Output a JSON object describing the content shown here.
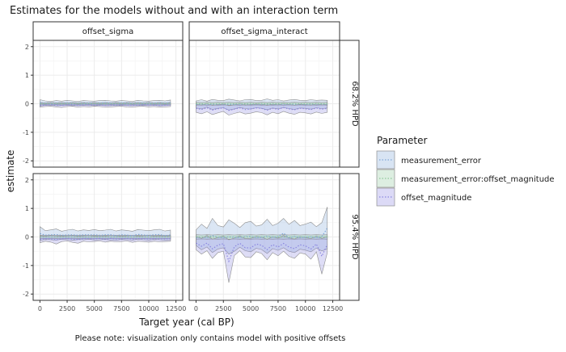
{
  "chart_data": {
    "type": "area",
    "title": "Estimates for the models without and with an interaction term",
    "xlabel": "Target year (cal BP)",
    "ylabel": "estimate",
    "caption": "Please note: visualization only contains model with positive offsets",
    "xlim": [
      0,
      12500
    ],
    "ylim": [
      -2,
      2
    ],
    "x_ticks": [
      0,
      2500,
      5000,
      7500,
      10000,
      12500
    ],
    "y_ticks": [
      -2,
      -1,
      0,
      1,
      2
    ],
    "grid": true,
    "legend": {
      "title": "Parameter",
      "position": "right"
    },
    "facet_columns": [
      "offset_sigma",
      "offset_sigma_interact"
    ],
    "facet_rows": [
      "68.2% HPD",
      "95.4% HPD"
    ],
    "x": [
      0,
      500,
      1000,
      1500,
      2000,
      2500,
      3000,
      3500,
      4000,
      4500,
      5000,
      5500,
      6000,
      6500,
      7000,
      7500,
      8000,
      8500,
      9000,
      9500,
      10000,
      10500,
      11000,
      11500,
      12000
    ],
    "series": [
      {
        "name": "measurement_error",
        "color": "#7ea6d8",
        "panels": {
          "offset_sigma|68.2% HPD": {
            "lower": [
              -0.08,
              -0.06,
              -0.05,
              -0.07,
              -0.06,
              -0.05,
              -0.07,
              -0.06,
              -0.06,
              -0.05,
              -0.07,
              -0.06,
              -0.05,
              -0.06,
              -0.07,
              -0.06,
              -0.05,
              -0.06,
              -0.07,
              -0.06,
              -0.05,
              -0.06,
              -0.07,
              -0.06,
              -0.05
            ],
            "upper": [
              0.14,
              0.1,
              0.08,
              0.11,
              0.09,
              0.12,
              0.1,
              0.08,
              0.11,
              0.1,
              0.09,
              0.11,
              0.12,
              0.1,
              0.09,
              0.11,
              0.1,
              0.08,
              0.12,
              0.1,
              0.09,
              0.11,
              0.12,
              0.1,
              0.13
            ]
          },
          "offset_sigma_interact|68.2% HPD": {
            "lower": [
              -0.15,
              -0.18,
              -0.12,
              -0.2,
              -0.16,
              -0.14,
              -0.22,
              -0.18,
              -0.13,
              -0.17,
              -0.19,
              -0.14,
              -0.16,
              -0.21,
              -0.15,
              -0.18,
              -0.13,
              -0.17,
              -0.2,
              -0.15,
              -0.16,
              -0.19,
              -0.14,
              -0.17,
              -0.15
            ],
            "upper": [
              0.1,
              0.14,
              0.09,
              0.15,
              0.12,
              0.11,
              0.16,
              0.13,
              0.1,
              0.14,
              0.15,
              0.11,
              0.12,
              0.17,
              0.12,
              0.14,
              0.1,
              0.13,
              0.15,
              0.12,
              0.11,
              0.14,
              0.12,
              0.13,
              0.12
            ]
          },
          "offset_sigma|95.4% HPD": {
            "lower": [
              -0.12,
              -0.09,
              -0.1,
              -0.11,
              -0.08,
              -0.1,
              -0.12,
              -0.09,
              -0.1,
              -0.08,
              -0.11,
              -0.1,
              -0.09,
              -0.11,
              -0.12,
              -0.09,
              -0.1,
              -0.11,
              -0.08,
              -0.1,
              -0.11,
              -0.09,
              -0.1,
              -0.12,
              -0.1
            ],
            "upper": [
              0.36,
              0.22,
              0.25,
              0.28,
              0.2,
              0.24,
              0.27,
              0.21,
              0.25,
              0.23,
              0.26,
              0.22,
              0.24,
              0.27,
              0.21,
              0.25,
              0.23,
              0.2,
              0.26,
              0.24,
              0.22,
              0.25,
              0.27,
              0.21,
              0.24
            ]
          },
          "offset_sigma_interact|95.4% HPD": {
            "lower": [
              -0.3,
              -0.45,
              -0.35,
              -0.55,
              -0.42,
              -0.38,
              -0.6,
              -0.5,
              -0.36,
              -0.48,
              -0.52,
              -0.4,
              -0.44,
              -0.58,
              -0.41,
              -0.47,
              -0.38,
              -0.5,
              -0.55,
              -0.43,
              -0.46,
              -0.52,
              -0.39,
              -0.49,
              -0.42
            ],
            "upper": [
              0.25,
              0.45,
              0.3,
              0.65,
              0.4,
              0.35,
              0.6,
              0.48,
              0.33,
              0.5,
              0.55,
              0.38,
              0.42,
              0.62,
              0.4,
              0.48,
              0.65,
              0.44,
              0.58,
              0.4,
              0.45,
              0.52,
              0.36,
              0.5,
              1.05
            ]
          }
        }
      },
      {
        "name": "measurement_error:offset_magnitude",
        "color": "#8fc79a",
        "panels": {
          "offset_sigma|68.2% HPD": {
            "lower": [
              -0.04,
              -0.03,
              -0.04,
              -0.03,
              -0.04,
              -0.03,
              -0.04,
              -0.03,
              -0.04,
              -0.03,
              -0.04,
              -0.03,
              -0.04,
              -0.03,
              -0.04,
              -0.03,
              -0.04,
              -0.03,
              -0.04,
              -0.03,
              -0.04,
              -0.03,
              -0.04,
              -0.03,
              -0.04
            ],
            "upper": [
              0.04,
              0.03,
              0.04,
              0.03,
              0.04,
              0.03,
              0.04,
              0.03,
              0.04,
              0.03,
              0.04,
              0.03,
              0.04,
              0.03,
              0.04,
              0.03,
              0.04,
              0.03,
              0.04,
              0.03,
              0.04,
              0.03,
              0.04,
              0.03,
              0.04
            ]
          },
          "offset_sigma_interact|68.2% HPD": {
            "lower": [
              -0.05,
              -0.04,
              -0.05,
              -0.04,
              -0.05,
              -0.04,
              -0.05,
              -0.04,
              -0.05,
              -0.04,
              -0.05,
              -0.04,
              -0.05,
              -0.04,
              -0.05,
              -0.04,
              -0.05,
              -0.04,
              -0.05,
              -0.04,
              -0.05,
              -0.04,
              -0.05,
              -0.04,
              -0.05
            ],
            "upper": [
              0.05,
              0.04,
              0.05,
              0.04,
              0.05,
              0.04,
              0.05,
              0.04,
              0.05,
              0.04,
              0.05,
              0.04,
              0.05,
              0.04,
              0.05,
              0.04,
              0.05,
              0.04,
              0.05,
              0.04,
              0.05,
              0.04,
              0.05,
              0.04,
              0.05
            ]
          },
          "offset_sigma|95.4% HPD": {
            "lower": [
              -0.06,
              -0.05,
              -0.06,
              -0.05,
              -0.06,
              -0.05,
              -0.06,
              -0.05,
              -0.06,
              -0.05,
              -0.06,
              -0.05,
              -0.06,
              -0.05,
              -0.06,
              -0.05,
              -0.06,
              -0.05,
              -0.06,
              -0.05,
              -0.06,
              -0.05,
              -0.06,
              -0.05,
              -0.06
            ],
            "upper": [
              0.06,
              0.05,
              0.06,
              0.05,
              0.06,
              0.05,
              0.06,
              0.05,
              0.06,
              0.05,
              0.06,
              0.05,
              0.06,
              0.05,
              0.06,
              0.05,
              0.06,
              0.05,
              0.06,
              0.05,
              0.06,
              0.05,
              0.06,
              0.05,
              0.06
            ]
          },
          "offset_sigma_interact|95.4% HPD": {
            "lower": [
              -0.08,
              -0.07,
              -0.08,
              -0.07,
              -0.08,
              -0.07,
              -0.08,
              -0.07,
              -0.08,
              -0.07,
              -0.08,
              -0.07,
              -0.08,
              -0.07,
              -0.08,
              -0.07,
              -0.08,
              -0.07,
              -0.08,
              -0.07,
              -0.08,
              -0.07,
              -0.08,
              -0.07,
              -0.08
            ],
            "upper": [
              0.08,
              0.07,
              0.08,
              0.07,
              0.08,
              0.07,
              0.08,
              0.07,
              0.08,
              0.07,
              0.08,
              0.07,
              0.08,
              0.07,
              0.08,
              0.07,
              0.08,
              0.07,
              0.08,
              0.07,
              0.08,
              0.07,
              0.08,
              0.07,
              0.08
            ]
          }
        }
      },
      {
        "name": "offset_magnitude",
        "color": "#8a86e0",
        "panels": {
          "offset_sigma|68.2% HPD": {
            "lower": [
              -0.12,
              -0.1,
              -0.09,
              -0.11,
              -0.13,
              -0.1,
              -0.09,
              -0.12,
              -0.1,
              -0.11,
              -0.09,
              -0.1,
              -0.12,
              -0.11,
              -0.1,
              -0.09,
              -0.11,
              -0.12,
              -0.1,
              -0.09,
              -0.11,
              -0.1,
              -0.12,
              -0.11,
              -0.1
            ],
            "upper": [
              0.02,
              0.01,
              0.03,
              0.02,
              0.01,
              0.02,
              0.03,
              0.01,
              0.02,
              0.03,
              0.01,
              0.02,
              0.01,
              0.03,
              0.02,
              0.01,
              0.02,
              0.03,
              0.01,
              0.02,
              0.03,
              0.01,
              0.02,
              0.01,
              0.02
            ]
          },
          "offset_sigma_interact|68.2% HPD": {
            "lower": [
              -0.3,
              -0.35,
              -0.28,
              -0.38,
              -0.32,
              -0.27,
              -0.4,
              -0.34,
              -0.29,
              -0.36,
              -0.33,
              -0.28,
              -0.31,
              -0.39,
              -0.3,
              -0.35,
              -0.27,
              -0.33,
              -0.37,
              -0.3,
              -0.32,
              -0.36,
              -0.29,
              -0.34,
              -0.3
            ],
            "upper": [
              -0.02,
              -0.05,
              0.0,
              -0.06,
              -0.03,
              -0.01,
              -0.07,
              -0.04,
              0.0,
              -0.05,
              -0.03,
              -0.01,
              -0.02,
              -0.06,
              -0.02,
              -0.04,
              0.0,
              -0.03,
              -0.05,
              -0.02,
              -0.03,
              -0.05,
              -0.01,
              -0.04,
              -0.02
            ]
          },
          "offset_sigma|95.4% HPD": {
            "lower": [
              -0.2,
              -0.15,
              -0.18,
              -0.25,
              -0.16,
              -0.14,
              -0.19,
              -0.22,
              -0.15,
              -0.17,
              -0.16,
              -0.14,
              -0.18,
              -0.15,
              -0.17,
              -0.16,
              -0.14,
              -0.19,
              -0.15,
              -0.16,
              -0.18,
              -0.15,
              -0.17,
              -0.16,
              -0.15
            ],
            "upper": [
              0.04,
              0.03,
              0.05,
              0.04,
              0.03,
              0.04,
              0.05,
              0.03,
              0.04,
              0.05,
              0.03,
              0.04,
              0.03,
              0.05,
              0.04,
              0.03,
              0.04,
              0.05,
              0.03,
              0.04,
              0.05,
              0.03,
              0.04,
              0.03,
              0.04
            ]
          },
          "offset_sigma_interact|95.4% HPD": {
            "lower": [
              -0.45,
              -0.6,
              -0.48,
              -0.75,
              -0.55,
              -0.5,
              -1.6,
              -0.65,
              -0.48,
              -0.7,
              -0.72,
              -0.52,
              -0.58,
              -0.8,
              -0.55,
              -0.66,
              -0.5,
              -0.68,
              -0.75,
              -0.56,
              -0.6,
              -0.78,
              -0.52,
              -1.3,
              -0.55
            ],
            "upper": [
              0.02,
              -0.05,
              0.05,
              -0.08,
              -0.02,
              0.03,
              -0.1,
              -0.04,
              0.04,
              -0.06,
              -0.05,
              0.02,
              0.0,
              -0.09,
              0.01,
              -0.04,
              0.05,
              -0.03,
              -0.07,
              0.01,
              -0.02,
              -0.06,
              0.03,
              -0.05,
              0.02
            ]
          }
        }
      }
    ]
  }
}
